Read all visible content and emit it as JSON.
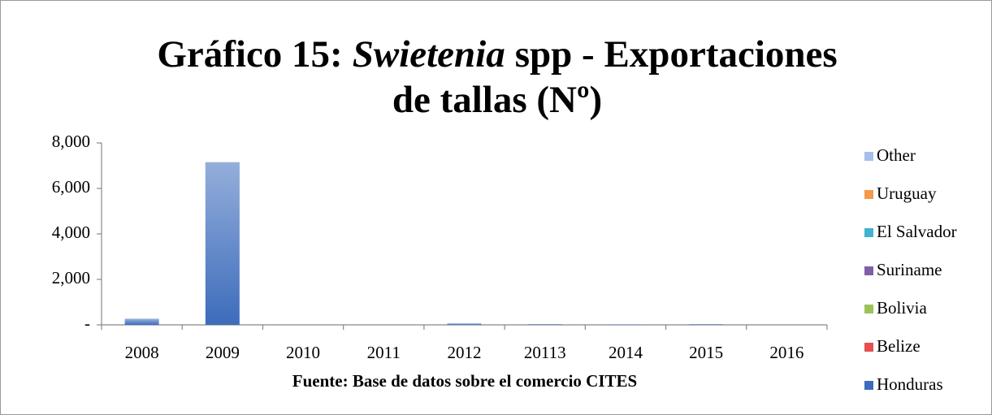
{
  "chart_data": {
    "type": "stacked_bar",
    "title": [
      "Gráfico 15:",
      "Swietenia",
      "spp - Exportaciones",
      "de tallas (Nº)"
    ],
    "x_label": "Fuente: Base de datos sobre el comercio CITES",
    "categories": [
      "2008",
      "2009",
      "2010",
      "2011",
      "2012",
      "20113",
      "2014",
      "2015",
      "2016"
    ],
    "series": [
      {
        "name": "Honduras",
        "color": "#3d6cbc",
        "values": [
          250,
          7150,
          0,
          0,
          60,
          30,
          20,
          30,
          0
        ]
      },
      {
        "name": "Belize",
        "color": "#e4514f",
        "values": [
          0,
          0,
          0,
          0,
          0,
          0,
          0,
          0,
          0
        ]
      },
      {
        "name": "Bolivia",
        "color": "#9bc35a",
        "values": [
          0,
          0,
          0,
          0,
          0,
          0,
          0,
          0,
          0
        ]
      },
      {
        "name": "Suriname",
        "color": "#7f5fa8",
        "values": [
          0,
          0,
          0,
          0,
          0,
          0,
          0,
          0,
          0
        ]
      },
      {
        "name": "El Salvador",
        "color": "#3fb3cf",
        "values": [
          0,
          0,
          0,
          0,
          0,
          0,
          0,
          0,
          0
        ]
      },
      {
        "name": "Uruguay",
        "color": "#f59a4a",
        "values": [
          0,
          0,
          0,
          0,
          0,
          0,
          0,
          0,
          0
        ]
      },
      {
        "name": "Other",
        "color": "#a5bfeb",
        "values": [
          30,
          0,
          0,
          0,
          0,
          0,
          0,
          0,
          0
        ]
      }
    ],
    "ylim": [
      0,
      8000
    ],
    "yticks": [
      {
        "value": 0,
        "label": "-"
      },
      {
        "value": 2000,
        "label": "2,000"
      },
      {
        "value": 4000,
        "label": "4,000"
      },
      {
        "value": 6000,
        "label": "6,000"
      },
      {
        "value": 8000,
        "label": "8,000"
      }
    ],
    "legend": "right"
  }
}
